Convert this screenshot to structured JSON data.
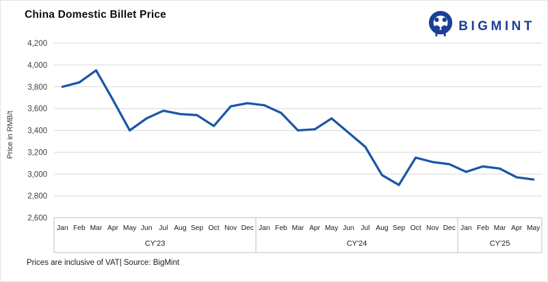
{
  "header": {
    "title": "China Domestic Billet Price",
    "brand": "BIGMINT"
  },
  "footer": {
    "note": "Prices are inclusive of VAT| Source: BigMint"
  },
  "colors": {
    "line": "#1A56A8",
    "brand_navy": "#1B3F97",
    "gridline": "#D9D9D9",
    "axis_line": "#BFBFBF",
    "axis_text": "#404040",
    "month_text": "#1a1a1a"
  },
  "chart_data": {
    "type": "line",
    "title": "China Domestic Billet Price",
    "xlabel": "",
    "ylabel": "Price in RMB/t",
    "ylim": [
      2600,
      4200
    ],
    "ytick_step": 200,
    "yticks_labels": [
      "2,600",
      "2,800",
      "3,000",
      "3,200",
      "3,400",
      "3,600",
      "3,800",
      "4,000",
      "4,200"
    ],
    "grid": true,
    "legend": false,
    "x_groups": [
      {
        "label": "CY'23",
        "months": [
          "Jan",
          "Feb",
          "Mar",
          "Apr",
          "May",
          "Jun",
          "Jul",
          "Aug",
          "Sep",
          "Oct",
          "Nov",
          "Dec"
        ]
      },
      {
        "label": "CY'24",
        "months": [
          "Jan",
          "Feb",
          "Mar",
          "Apr",
          "May",
          "Jun",
          "Jul",
          "Aug",
          "Sep",
          "Oct",
          "Nov",
          "Dec"
        ]
      },
      {
        "label": "CY'25",
        "months": [
          "Jan",
          "Feb",
          "Mar",
          "Apr",
          "May"
        ]
      }
    ],
    "series": [
      {
        "name": "China Domestic Billet Price",
        "values": [
          3800,
          3840,
          3950,
          3680,
          3400,
          3510,
          3580,
          3550,
          3540,
          3440,
          3620,
          3650,
          3630,
          3560,
          3400,
          3410,
          3510,
          3380,
          3250,
          2990,
          2900,
          3150,
          3110,
          3090,
          3020,
          3070,
          3050,
          2970,
          2950
        ]
      }
    ]
  }
}
